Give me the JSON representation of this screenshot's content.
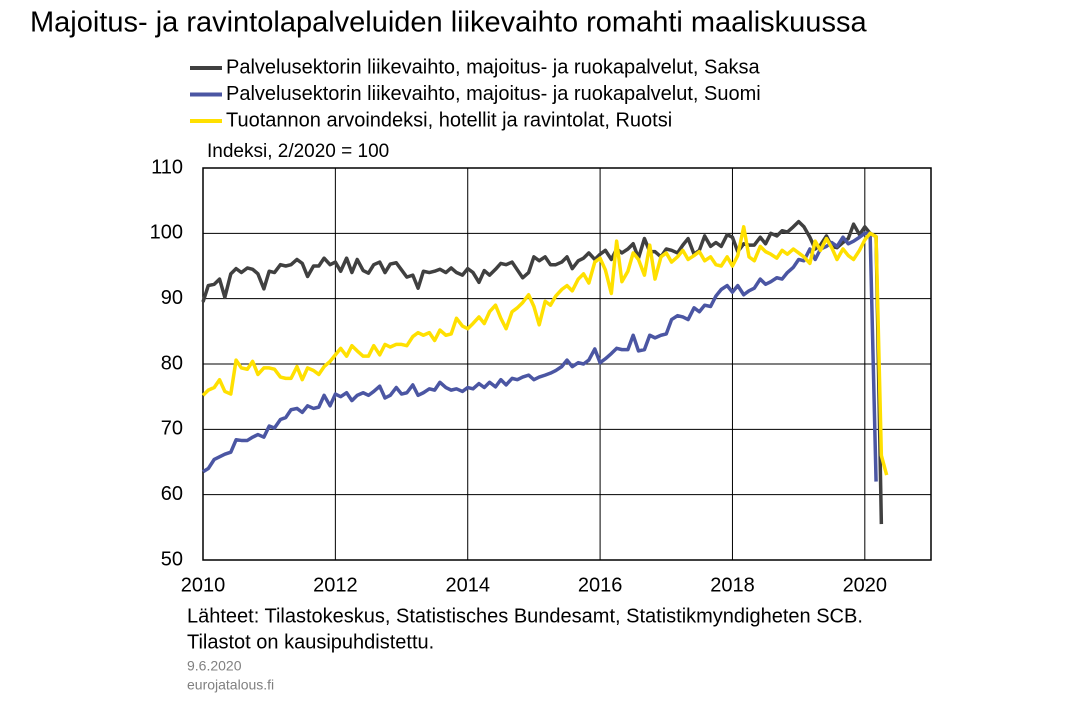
{
  "chart_data": {
    "type": "line",
    "title": "Majoitus- ja ravintolapalveluiden liikevaihto romahti maaliskuussa",
    "ylabel": "Indeksi, 2/2020 = 100",
    "notes": [
      "Lähteet: Tilastokeskus, Statistisches Bundesamt, Statistikmyndigheten SCB.",
      "Tilastot on kausipuhdistettu."
    ],
    "date": "9.6.2020",
    "site": "eurojatalous.fi",
    "xlim": [
      2010,
      2021
    ],
    "xticks": [
      2010,
      2012,
      2014,
      2016,
      2018,
      2020
    ],
    "ylim": [
      50,
      110
    ],
    "yticks": [
      50,
      60,
      70,
      80,
      90,
      100,
      110
    ],
    "grid": true,
    "x": [
      2010.0,
      2010.08,
      2010.17,
      2010.25,
      2010.33,
      2010.42,
      2010.5,
      2010.58,
      2010.67,
      2010.75,
      2010.83,
      2010.92,
      2011.0,
      2011.08,
      2011.17,
      2011.25,
      2011.33,
      2011.42,
      2011.5,
      2011.58,
      2011.67,
      2011.75,
      2011.83,
      2011.92,
      2012.0,
      2012.08,
      2012.17,
      2012.25,
      2012.33,
      2012.42,
      2012.5,
      2012.58,
      2012.67,
      2012.75,
      2012.83,
      2012.92,
      2013.0,
      2013.08,
      2013.17,
      2013.25,
      2013.33,
      2013.42,
      2013.5,
      2013.58,
      2013.67,
      2013.75,
      2013.83,
      2013.92,
      2014.0,
      2014.08,
      2014.17,
      2014.25,
      2014.33,
      2014.42,
      2014.5,
      2014.58,
      2014.67,
      2014.75,
      2014.83,
      2014.92,
      2015.0,
      2015.08,
      2015.17,
      2015.25,
      2015.33,
      2015.42,
      2015.5,
      2015.58,
      2015.67,
      2015.75,
      2015.83,
      2015.92,
      2016.0,
      2016.08,
      2016.17,
      2016.25,
      2016.33,
      2016.42,
      2016.5,
      2016.58,
      2016.67,
      2016.75,
      2016.83,
      2016.92,
      2017.0,
      2017.08,
      2017.17,
      2017.25,
      2017.33,
      2017.42,
      2017.5,
      2017.58,
      2017.67,
      2017.75,
      2017.83,
      2017.92,
      2018.0,
      2018.08,
      2018.17,
      2018.25,
      2018.33,
      2018.42,
      2018.5,
      2018.58,
      2018.67,
      2018.75,
      2018.83,
      2018.92,
      2019.0,
      2019.08,
      2019.17,
      2019.25,
      2019.33,
      2019.42,
      2019.5,
      2019.58,
      2019.67,
      2019.75,
      2019.83,
      2019.92,
      2020.0,
      2020.08,
      2020.17,
      2020.25,
      2020.33
    ],
    "series": [
      {
        "name": "Palvelusektorin liikevaihto, majoitus- ja ruokapalvelut, Saksa",
        "color": "#404040",
        "values": [
          89.5,
          92,
          92.2,
          93,
          90.2,
          93.8,
          94.6,
          94,
          94.7,
          94.5,
          93.8,
          91.5,
          94.2,
          94,
          95.2,
          95,
          95.2,
          96,
          95.4,
          93.4,
          95,
          95,
          96.2,
          95.2,
          95.6,
          94.2,
          96.2,
          94,
          96,
          94.3,
          93.9,
          95.2,
          95.6,
          94,
          95.3,
          95.5,
          94.4,
          93.3,
          93.6,
          91.6,
          94.2,
          94,
          94.2,
          94.5,
          94,
          94.7,
          94,
          93.6,
          94.6,
          94,
          92.5,
          94.3,
          93.6,
          94.5,
          95.4,
          95.2,
          95.6,
          94.4,
          93.2,
          94,
          96.4,
          95.8,
          96.4,
          95.2,
          95.2,
          95.6,
          96.4,
          94.6,
          95.8,
          96.2,
          97,
          96,
          96.8,
          97.4,
          96,
          97.6,
          97,
          97.6,
          98.4,
          96.2,
          99.2,
          97.2,
          97.2,
          96.4,
          97.6,
          97.4,
          97,
          98.2,
          99.2,
          96.8,
          97.4,
          99.6,
          98,
          98.6,
          98,
          99.8,
          99.4,
          97.2,
          98.4,
          98.2,
          98.2,
          99.4,
          98.4,
          100,
          99.6,
          100.4,
          100.2,
          101,
          101.8,
          101,
          99.4,
          97.6,
          98.2,
          99.6,
          98,
          97.8,
          98.6,
          99.2,
          101.4,
          99.8,
          101,
          100,
          99.5,
          55.5,
          null
        ]
      },
      {
        "name": "Palvelusektorin liikevaihto, majoitus- ja ruokapalvelut, Suomi",
        "color": "#4b56a3",
        "values": [
          63.5,
          64,
          65.4,
          65.8,
          66.2,
          66.5,
          68.4,
          68.3,
          68.3,
          68.8,
          69.2,
          68.8,
          70.5,
          70.2,
          71.5,
          71.8,
          73,
          73.2,
          72.6,
          73.6,
          73.2,
          73.4,
          75.2,
          73.6,
          75.4,
          75,
          75.6,
          74.4,
          75.2,
          75.6,
          75.2,
          75.8,
          76.6,
          74.8,
          75.2,
          76.4,
          75.4,
          75.6,
          76.8,
          75.2,
          75.6,
          76.2,
          76,
          77.2,
          76.4,
          76,
          76.2,
          75.8,
          76.4,
          76.2,
          77,
          76.4,
          77.2,
          76.5,
          77.6,
          76.8,
          77.8,
          77.6,
          78,
          78.3,
          77.6,
          78,
          78.3,
          78.6,
          79,
          79.6,
          80.6,
          79.6,
          80.2,
          80,
          80.6,
          82.3,
          80.2,
          80.8,
          81.6,
          82.4,
          82.2,
          82.2,
          84.4,
          82,
          82.2,
          84.4,
          84,
          84.4,
          84.6,
          86.8,
          87.4,
          87.2,
          86.8,
          88.6,
          88,
          89,
          88.8,
          90.4,
          91.4,
          92,
          91,
          92,
          90.6,
          91.2,
          91.6,
          93,
          92.2,
          92.6,
          93.2,
          93,
          94,
          94.8,
          96,
          95.8,
          97.6,
          96,
          97.6,
          98,
          98.6,
          98,
          99.4,
          98.4,
          98.8,
          99.4,
          100,
          100,
          62,
          null,
          null
        ]
      },
      {
        "name": "Tuotannon arvoindeksi, hotellit ja ravintolat, Ruotsi",
        "color": "#ffe000",
        "values": [
          75.2,
          76,
          76.4,
          77.6,
          75.8,
          75.4,
          80.6,
          79.4,
          79.2,
          80.4,
          78.4,
          79.4,
          79.4,
          79.2,
          78,
          77.8,
          77.8,
          79.6,
          77.6,
          79.4,
          79,
          78.4,
          79.6,
          80.4,
          81.4,
          82.4,
          81.2,
          82.8,
          82,
          81.2,
          81.2,
          82.8,
          81.4,
          83,
          82.6,
          83,
          83,
          82.8,
          84.2,
          84.8,
          84.4,
          84.8,
          83.6,
          85.2,
          84.4,
          84.6,
          87,
          85.8,
          85.4,
          86.2,
          87.2,
          86.2,
          88,
          89,
          87,
          85.4,
          88,
          88.6,
          89.4,
          90.6,
          88.8,
          86,
          89.6,
          89,
          90.4,
          91.4,
          92,
          91.2,
          93,
          93.8,
          92.4,
          95.6,
          96.2,
          94.4,
          90.8,
          98.8,
          92.6,
          94.2,
          97,
          96,
          93.6,
          98.2,
          93,
          96.4,
          97,
          95.6,
          96.4,
          97.4,
          96,
          96.6,
          97.2,
          95.8,
          96.4,
          95.2,
          95,
          96.4,
          95,
          96.6,
          101,
          96.4,
          95.8,
          98,
          97.2,
          96.8,
          96.2,
          97.4,
          96.8,
          97.6,
          97,
          96.4,
          95.4,
          98.8,
          97.4,
          99.2,
          97.8,
          96,
          97.6,
          96.6,
          96,
          97.4,
          99,
          100,
          99.5,
          66,
          63
        ]
      }
    ]
  }
}
